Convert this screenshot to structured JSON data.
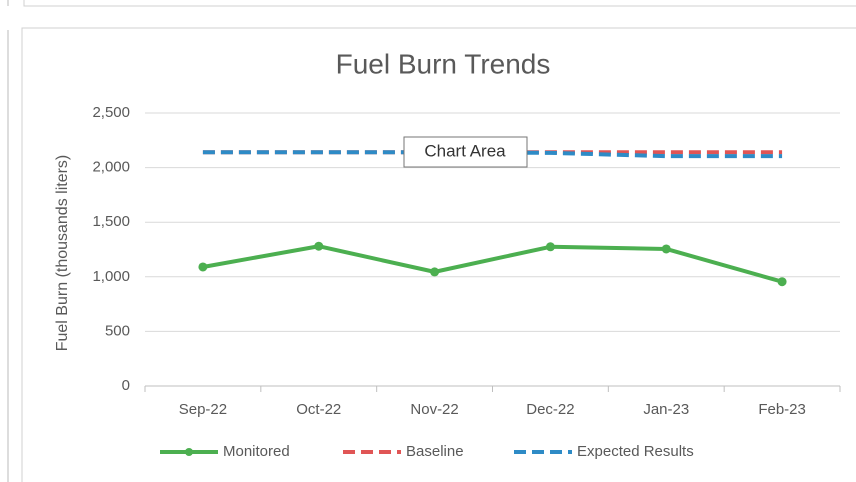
{
  "chart_data": {
    "type": "line",
    "title": "Fuel Burn Trends",
    "y_label": "Fuel Burn (thousands liters)",
    "tooltip": "Chart Area",
    "categories": [
      "Sep-22",
      "Oct-22",
      "Nov-22",
      "Dec-22",
      "Jan-23",
      "Feb-23"
    ],
    "series": [
      {
        "name": "Monitored",
        "color": "#4caf50",
        "marker": true,
        "dashed": false,
        "values": [
          1090,
          1280,
          1045,
          1275,
          1255,
          955
        ]
      },
      {
        "name": "Baseline",
        "color": "#e05555",
        "marker": false,
        "dashed": true,
        "values": [
          2140,
          2140,
          2140,
          2140,
          2140,
          2140
        ]
      },
      {
        "name": "Expected Results",
        "color": "#2e8bc6",
        "marker": false,
        "dashed": true,
        "values": [
          2140,
          2140,
          2140,
          2135,
          2105,
          2105
        ]
      }
    ],
    "ylim": [
      0,
      2500
    ],
    "yticks": [
      0,
      500,
      {
        "value": 1000,
        "label": "1,000"
      },
      {
        "value": 1500,
        "label": "1,500"
      },
      {
        "value": 2000,
        "label": "2,000"
      },
      {
        "value": 2500,
        "label": "2,500"
      }
    ],
    "grid": true,
    "legend": "bottom"
  }
}
